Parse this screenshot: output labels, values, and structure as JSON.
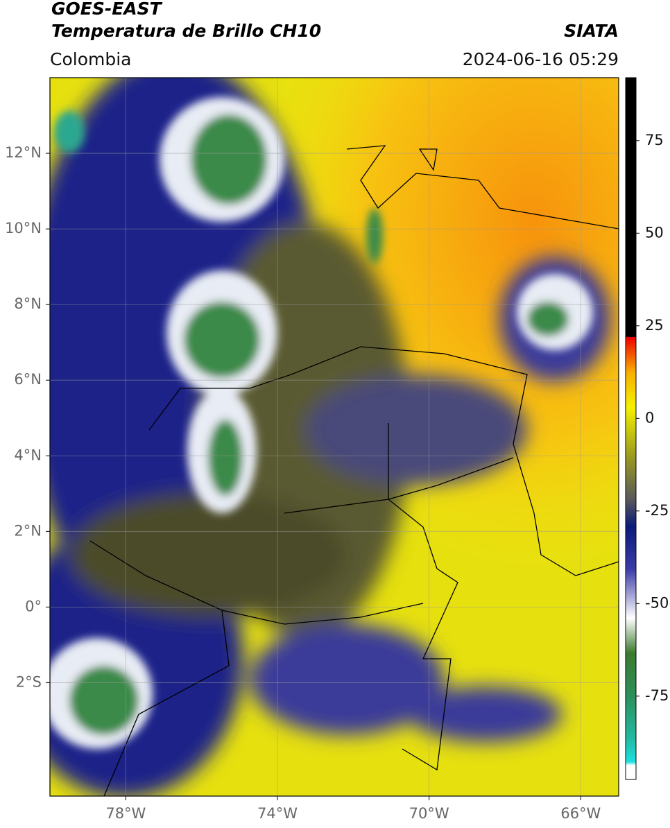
{
  "header": {
    "title": "GOES-EAST",
    "subtitle": "Temperatura de Brillo CH10",
    "source": "SIATA",
    "region": "Colombia",
    "timestamp": "2024-06-16 05:29"
  },
  "map": {
    "lon_range": [
      -80,
      -65
    ],
    "lat_range": [
      -5,
      14
    ],
    "grid": true,
    "lon_ticks": [
      {
        "value": -78,
        "label": "78°W"
      },
      {
        "value": -74,
        "label": "74°W"
      },
      {
        "value": -70,
        "label": "70°W"
      },
      {
        "value": -66,
        "label": "66°W"
      }
    ],
    "lat_ticks": [
      {
        "value": 12,
        "label": "12°N"
      },
      {
        "value": 10,
        "label": "10°N"
      },
      {
        "value": 8,
        "label": "8°N"
      },
      {
        "value": 6,
        "label": "6°N"
      },
      {
        "value": 4,
        "label": "4°N"
      },
      {
        "value": 2,
        "label": "2°N"
      },
      {
        "value": 0,
        "label": "0°"
      },
      {
        "value": -2,
        "label": "2°S"
      }
    ]
  },
  "colorbar": {
    "range": [
      -97.5,
      92
    ],
    "ticks": [
      75,
      50,
      25,
      0,
      -25,
      -50,
      -75
    ]
  }
}
